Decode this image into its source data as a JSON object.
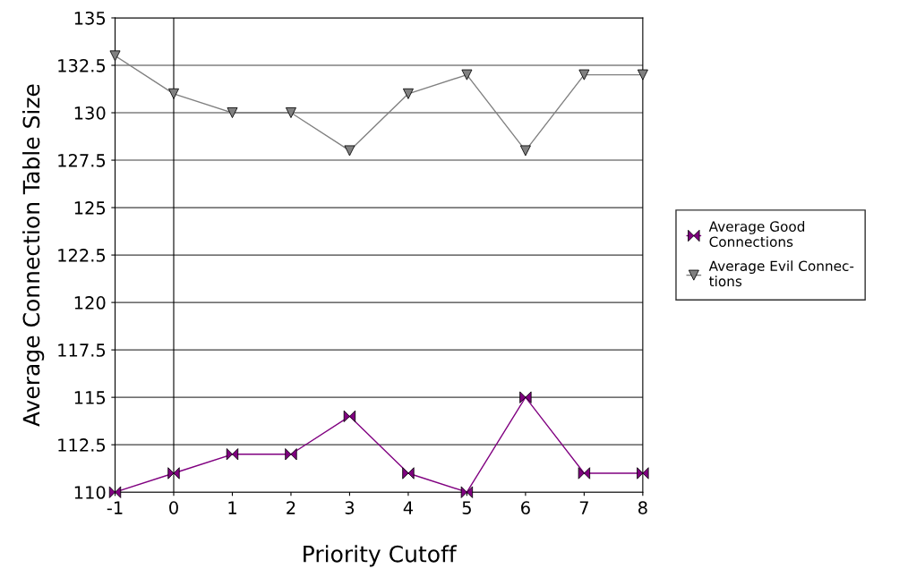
{
  "chart_data": {
    "type": "line",
    "xlabel": "Priority Cutoff",
    "ylabel": "Average Connection Table Size",
    "x": [
      -1,
      0,
      1,
      2,
      3,
      4,
      5,
      6,
      7,
      8
    ],
    "series": [
      {
        "name": "Average Good\nConnections",
        "color": "#800080",
        "marker": "diamond",
        "values": [
          110,
          111,
          112,
          112,
          114,
          111,
          110,
          115,
          111,
          111
        ]
      },
      {
        "name": "Average Evil Connec-\ntions",
        "color": "#808080",
        "marker": "triangle",
        "values": [
          133,
          131,
          130,
          130,
          128,
          131,
          132,
          128,
          132,
          132
        ]
      }
    ],
    "xlim": [
      -1,
      8
    ],
    "xticks": [
      -1,
      0,
      1,
      2,
      3,
      4,
      5,
      6,
      7,
      8
    ],
    "ylim": [
      110,
      135
    ],
    "yticks": [
      110,
      112.5,
      115,
      117.5,
      120,
      122.5,
      125,
      127.5,
      130,
      132.5,
      135
    ],
    "ref_lines": [
      {
        "axis": "x",
        "value": 0,
        "color": "#000000"
      }
    ],
    "grid": "y",
    "legend": "right",
    "line_style": "solid"
  }
}
